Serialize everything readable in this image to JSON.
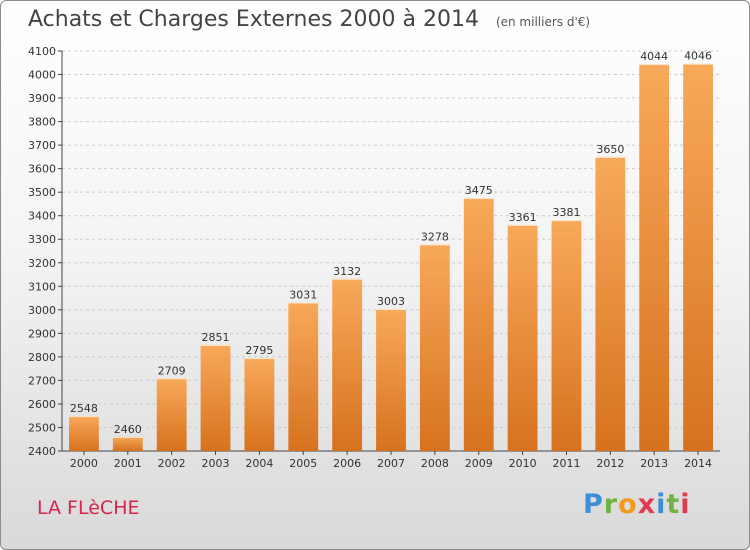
{
  "header": {
    "title": "Achats et Charges Externes 2000 à 2014",
    "unit": "(en milliers d'€)"
  },
  "commune": "LA FLèCHE",
  "logo": {
    "letters": [
      "P",
      "r",
      "o",
      "x",
      "i",
      "t",
      "i"
    ],
    "colors": [
      "#3b8fd6",
      "#6fb443",
      "#f29a1d",
      "#e23b4f",
      "#3b8fd6",
      "#6fb443",
      "#e23b4f"
    ]
  },
  "colors": {
    "bar_light": "#f8a95a",
    "bar_dark": "#d6721e",
    "grid": "#cccccc",
    "axis": "#444444",
    "title": "#444444",
    "commune": "#d9254e"
  },
  "chart_data": {
    "type": "bar",
    "title": "Achats et Charges Externes 2000 à 2014",
    "subtitle": "(en milliers d'€)",
    "categories": [
      "2000",
      "2001",
      "2002",
      "2003",
      "2004",
      "2005",
      "2006",
      "2007",
      "2008",
      "2009",
      "2010",
      "2011",
      "2012",
      "2013",
      "2014"
    ],
    "values": [
      2548,
      2460,
      2709,
      2851,
      2795,
      3031,
      3132,
      3003,
      3278,
      3475,
      3361,
      3381,
      3650,
      4044,
      4046
    ],
    "ylim": [
      2400,
      4100
    ],
    "yticks": [
      2400,
      2500,
      2600,
      2700,
      2800,
      2900,
      3000,
      3100,
      3200,
      3300,
      3400,
      3500,
      3600,
      3700,
      3800,
      3900,
      4000,
      4100
    ],
    "grid": true,
    "xlabel": "",
    "ylabel": ""
  }
}
